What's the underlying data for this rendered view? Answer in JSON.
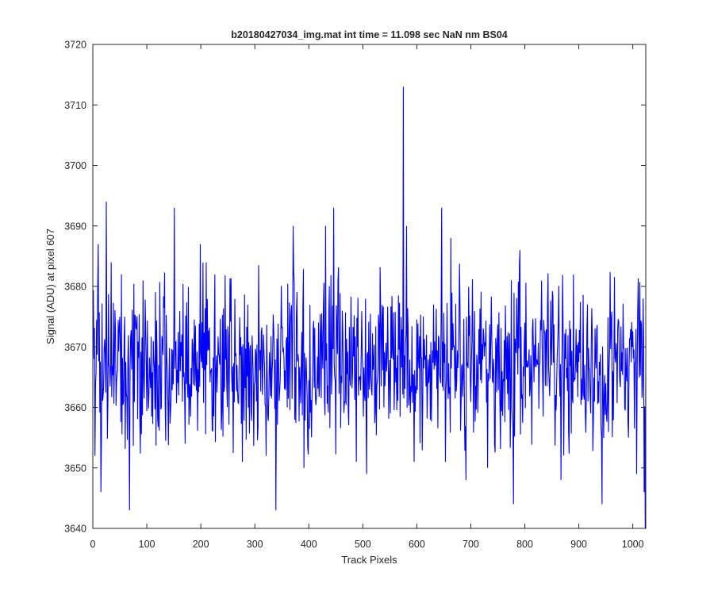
{
  "chart_data": {
    "type": "line",
    "title": "b20180427034_img.mat int time = 11.098 sec  NaN nm BS04",
    "xlabel": "Track Pixels",
    "ylabel": "Signal (ADU) at pixel 607",
    "xlim": [
      0,
      1024
    ],
    "ylim": [
      3640,
      3720
    ],
    "xticks": [
      0,
      100,
      200,
      300,
      400,
      500,
      600,
      700,
      800,
      900,
      1000
    ],
    "yticks": [
      3640,
      3650,
      3660,
      3670,
      3680,
      3690,
      3700,
      3710,
      3720
    ],
    "grid": false,
    "legend": "none",
    "series_color": "#0000ff",
    "series": [
      {
        "n_points": 1024,
        "mean": 3667,
        "noise_std": 7,
        "seed": 20180427,
        "spikes": [
          {
            "x": 1,
            "y": 3668
          },
          {
            "x": 3,
            "y": 3652
          },
          {
            "x": 9,
            "y": 3687
          },
          {
            "x": 14,
            "y": 3646
          },
          {
            "x": 24,
            "y": 3694
          },
          {
            "x": 33,
            "y": 3684
          },
          {
            "x": 52,
            "y": 3682
          },
          {
            "x": 67,
            "y": 3643
          },
          {
            "x": 150,
            "y": 3693
          },
          {
            "x": 170,
            "y": 3654
          },
          {
            "x": 198,
            "y": 3687
          },
          {
            "x": 276,
            "y": 3651
          },
          {
            "x": 320,
            "y": 3652
          },
          {
            "x": 338,
            "y": 3643
          },
          {
            "x": 370,
            "y": 3690
          },
          {
            "x": 390,
            "y": 3650
          },
          {
            "x": 430,
            "y": 3690
          },
          {
            "x": 445,
            "y": 3693
          },
          {
            "x": 487,
            "y": 3651
          },
          {
            "x": 506,
            "y": 3649
          },
          {
            "x": 574,
            "y": 3713
          },
          {
            "x": 580,
            "y": 3690
          },
          {
            "x": 594,
            "y": 3651
          },
          {
            "x": 645,
            "y": 3693
          },
          {
            "x": 652,
            "y": 3651
          },
          {
            "x": 662,
            "y": 3688
          },
          {
            "x": 690,
            "y": 3648
          },
          {
            "x": 730,
            "y": 3650
          },
          {
            "x": 778,
            "y": 3644
          },
          {
            "x": 790,
            "y": 3686
          },
          {
            "x": 866,
            "y": 3648
          },
          {
            "x": 942,
            "y": 3644
          },
          {
            "x": 1006,
            "y": 3649
          },
          {
            "x": 1018,
            "y": 3678
          },
          {
            "x": 1020,
            "y": 3646
          },
          {
            "x": 1022,
            "y": 3640
          }
        ]
      }
    ]
  }
}
